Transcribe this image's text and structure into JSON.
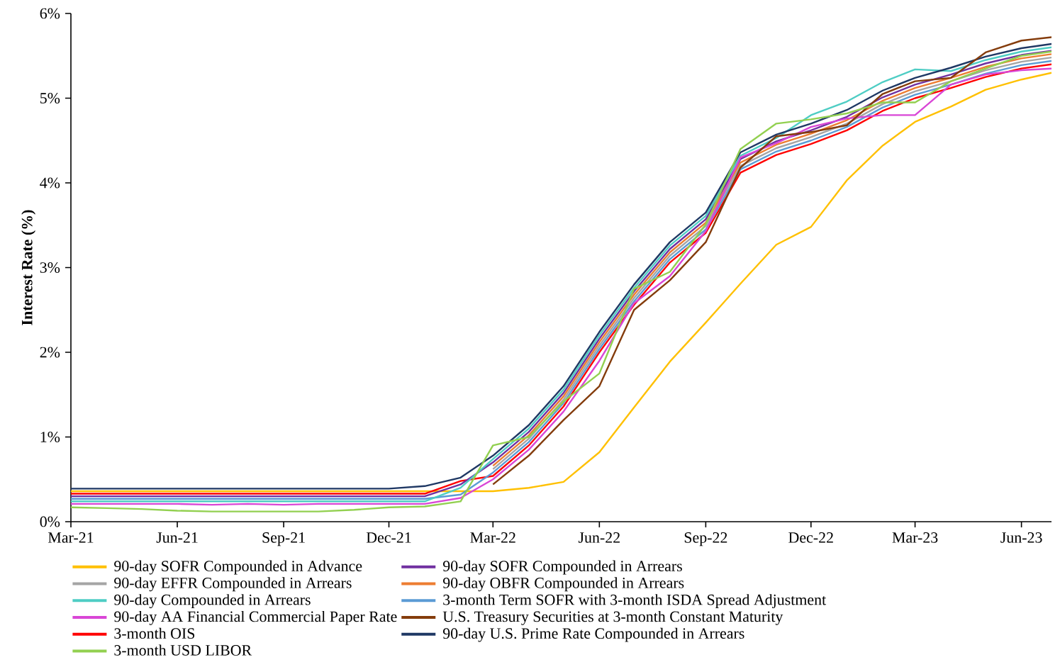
{
  "chart_data": {
    "type": "line",
    "ylabel": "Interest Rate (%)",
    "legend": "bottom",
    "x": [
      "2021-03-01",
      "2021-04-01",
      "2021-05-01",
      "2021-06-01",
      "2021-07-01",
      "2021-08-01",
      "2021-09-01",
      "2021-10-01",
      "2021-11-01",
      "2021-12-01",
      "2022-01-01",
      "2022-02-01",
      "2022-03-01",
      "2022-04-01",
      "2022-05-01",
      "2022-06-01",
      "2022-07-01",
      "2022-08-01",
      "2022-09-01",
      "2022-10-01",
      "2022-11-01",
      "2022-12-01",
      "2023-01-01",
      "2023-02-01",
      "2023-03-01",
      "2023-04-01",
      "2023-05-01",
      "2023-06-01",
      "2023-06-27"
    ],
    "xlim": [
      "2021-03-01",
      "2023-06-27"
    ],
    "xticks": [
      {
        "value": "2021-03-01",
        "label": "Mar-21"
      },
      {
        "value": "2021-06-01",
        "label": "Jun-21"
      },
      {
        "value": "2021-09-01",
        "label": "Sep-21"
      },
      {
        "value": "2021-12-01",
        "label": "Dec-21"
      },
      {
        "value": "2022-03-01",
        "label": "Mar-22"
      },
      {
        "value": "2022-06-01",
        "label": "Jun-22"
      },
      {
        "value": "2022-09-01",
        "label": "Sep-22"
      },
      {
        "value": "2022-12-01",
        "label": "Dec-22"
      },
      {
        "value": "2023-03-01",
        "label": "Mar-23"
      },
      {
        "value": "2023-06-01",
        "label": "Jun-23"
      }
    ],
    "ylim": [
      0,
      6
    ],
    "yticks": [
      {
        "value": 0,
        "label": "0%"
      },
      {
        "value": 1,
        "label": "1%"
      },
      {
        "value": 2,
        "label": "2%"
      },
      {
        "value": 3,
        "label": "3%"
      },
      {
        "value": 4,
        "label": "4%"
      },
      {
        "value": 5,
        "label": "5%"
      },
      {
        "value": 6,
        "label": "6%"
      }
    ],
    "series": [
      {
        "name": "90-day SOFR Compounded in Advance",
        "color": "#ffc000",
        "values": [
          0.36,
          0.36,
          0.36,
          0.36,
          0.36,
          0.36,
          0.36,
          0.36,
          0.36,
          0.36,
          0.36,
          0.36,
          0.36,
          0.4,
          0.47,
          0.82,
          1.35,
          1.89,
          2.35,
          2.81,
          3.27,
          3.48,
          4.03,
          4.44,
          4.72,
          4.9,
          5.1,
          5.22,
          5.3
        ]
      },
      {
        "name": "90-day SOFR Compounded in Arrears",
        "color": "#7030a0",
        "values": [
          0.3,
          0.3,
          0.3,
          0.3,
          0.3,
          0.3,
          0.3,
          0.3,
          0.3,
          0.3,
          0.3,
          0.44,
          0.7,
          1.06,
          1.52,
          2.16,
          2.72,
          3.22,
          3.57,
          4.28,
          4.49,
          4.62,
          4.78,
          5.01,
          5.16,
          5.28,
          5.41,
          5.51,
          5.56
        ]
      },
      {
        "name": "90-day EFFR Compounded in Arrears",
        "color": "#a5a5a5",
        "values": [
          null,
          null,
          null,
          null,
          null,
          null,
          null,
          null,
          null,
          null,
          null,
          null,
          0.62,
          0.98,
          1.44,
          2.08,
          2.64,
          3.14,
          3.49,
          4.2,
          4.41,
          4.54,
          4.7,
          4.93,
          5.08,
          5.2,
          5.33,
          5.43,
          5.48
        ]
      },
      {
        "name": "90-day OBFR Compounded in Arrears",
        "color": "#ed7d31",
        "values": [
          null,
          null,
          null,
          null,
          null,
          null,
          null,
          null,
          null,
          null,
          null,
          null,
          0.66,
          1.02,
          1.48,
          2.12,
          2.68,
          3.18,
          3.53,
          4.24,
          4.45,
          4.58,
          4.74,
          4.97,
          5.12,
          5.24,
          5.37,
          5.47,
          5.52
        ]
      },
      {
        "name": "90-day Compounded in Arrears",
        "color": "#4ecdc4",
        "values": [
          0.24,
          0.24,
          0.24,
          0.24,
          0.24,
          0.24,
          0.24,
          0.24,
          0.24,
          0.24,
          0.24,
          0.4,
          0.74,
          1.1,
          1.56,
          2.2,
          2.76,
          3.26,
          3.61,
          4.32,
          4.53,
          4.8,
          4.96,
          5.19,
          5.34,
          5.32,
          5.45,
          5.55,
          5.6
        ]
      },
      {
        "name": "3-month Term SOFR with 3-month ISDA Spread Adjustment",
        "color": "#5b9bd5",
        "values": [
          0.27,
          0.27,
          0.27,
          0.27,
          0.27,
          0.27,
          0.27,
          0.27,
          0.27,
          0.27,
          0.27,
          0.32,
          0.58,
          0.94,
          1.4,
          2.04,
          2.6,
          3.1,
          3.45,
          4.16,
          4.37,
          4.5,
          4.66,
          4.89,
          5.04,
          5.16,
          5.29,
          5.39,
          5.44
        ]
      },
      {
        "name": "90-day AA Financial Commercial Paper Rate",
        "color": "#d946d6",
        "values": [
          0.21,
          0.21,
          0.21,
          0.21,
          0.2,
          0.21,
          0.2,
          0.21,
          0.21,
          0.21,
          0.21,
          0.28,
          0.5,
          0.85,
          1.3,
          1.9,
          2.58,
          2.9,
          3.43,
          4.3,
          4.47,
          4.66,
          4.76,
          4.8,
          4.8,
          5.16,
          5.28,
          5.33,
          5.35
        ]
      },
      {
        "name": "U.S. Treasury Securities at 3-month Constant Maturity",
        "color": "#843c0c",
        "values": [
          null,
          null,
          null,
          null,
          null,
          null,
          null,
          null,
          null,
          null,
          null,
          null,
          0.44,
          0.78,
          1.2,
          1.6,
          2.5,
          2.85,
          3.3,
          4.18,
          4.55,
          4.6,
          4.68,
          5.05,
          5.2,
          5.24,
          5.54,
          5.68,
          5.72
        ]
      },
      {
        "name": "3-month OIS",
        "color": "#ff0000",
        "values": [
          0.33,
          0.33,
          0.33,
          0.33,
          0.33,
          0.33,
          0.33,
          0.33,
          0.33,
          0.33,
          0.33,
          0.48,
          0.54,
          0.9,
          1.36,
          2.0,
          2.56,
          3.06,
          3.41,
          4.12,
          4.33,
          4.46,
          4.62,
          4.85,
          5.0,
          5.12,
          5.25,
          5.35,
          5.4
        ]
      },
      {
        "name": "90-day U.S. Prime Rate Compounded in Arrears",
        "color": "#1f3864",
        "values": [
          0.39,
          0.39,
          0.39,
          0.39,
          0.39,
          0.39,
          0.39,
          0.39,
          0.39,
          0.39,
          0.42,
          0.52,
          0.78,
          1.14,
          1.6,
          2.24,
          2.8,
          3.3,
          3.65,
          4.36,
          4.57,
          4.7,
          4.86,
          5.09,
          5.24,
          5.36,
          5.49,
          5.59,
          5.64
        ]
      },
      {
        "name": "3-month USD LIBOR",
        "color": "#92d050",
        "values": [
          0.17,
          0.16,
          0.15,
          0.13,
          0.12,
          0.12,
          0.12,
          0.12,
          0.14,
          0.17,
          0.18,
          0.24,
          0.9,
          1.0,
          1.42,
          1.75,
          2.75,
          2.95,
          3.51,
          4.4,
          4.7,
          4.75,
          4.82,
          4.95,
          4.95,
          5.2,
          5.35,
          5.5,
          5.55
        ]
      }
    ]
  }
}
